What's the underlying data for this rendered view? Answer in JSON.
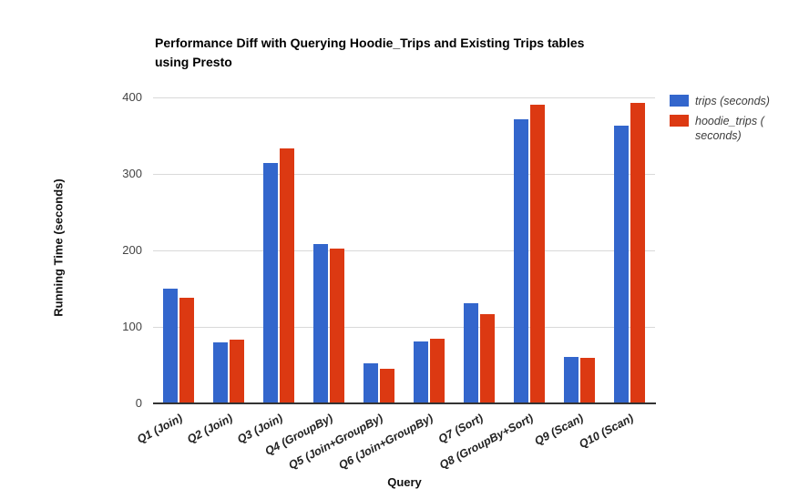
{
  "chart_data": {
    "type": "bar",
    "title": "Performance Diff with Querying Hoodie_Trips and Existing Trips tables\nusing Presto",
    "xlabel": "Query",
    "ylabel": "Running Time (seconds)",
    "categories": [
      "Q1 (Join)",
      "Q2 (Join)",
      "Q3 (Join)",
      "Q4 (GroupBy)",
      "Q5 (Join+GroupBy)",
      "Q6 (Join+GroupBy)",
      "Q7 (Sort)",
      "Q8 (GroupBy+Sort)",
      "Q9 (Scan)",
      "Q10 (Scan)"
    ],
    "series": [
      {
        "key": "trips",
        "name": "trips (seconds)",
        "color": "#3366CC",
        "values": [
          150,
          80,
          314,
          208,
          52,
          81,
          131,
          371,
          61,
          363
        ]
      },
      {
        "key": "hoodie_trips",
        "name": "hoodie_trips ( seconds)",
        "color": "#DC3912",
        "values": [
          138,
          83,
          333,
          202,
          45,
          85,
          117,
          390,
          60,
          393
        ]
      }
    ],
    "ylim": [
      0,
      400
    ],
    "yticks": [
      0,
      100,
      200,
      300,
      400
    ],
    "grid": true,
    "legend_position": "right",
    "background": "#ffffff"
  },
  "legend": {
    "items": [
      {
        "label": "trips (seconds)",
        "color": "#3366CC"
      },
      {
        "label": "hoodie_trips (\nseconds)",
        "color": "#DC3912"
      }
    ]
  }
}
